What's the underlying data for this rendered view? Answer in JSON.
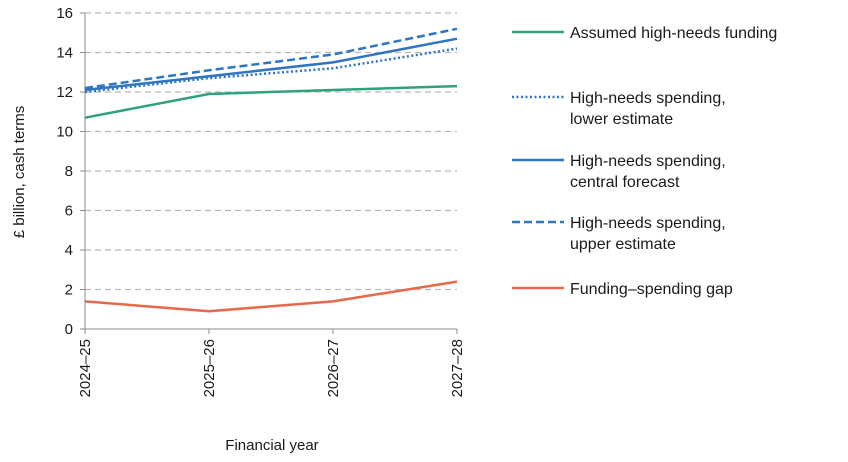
{
  "chart_data": {
    "type": "line",
    "xlabel": "Financial year",
    "ylabel": "£ billion, cash terms",
    "ylim": [
      0,
      16
    ],
    "yticks": [
      0,
      2,
      4,
      6,
      8,
      10,
      12,
      14,
      16
    ],
    "grid": "horizontal dashed",
    "legend_position": "right",
    "categories": [
      "2024–25",
      "2025–26",
      "2026–27",
      "2027–28"
    ],
    "series": [
      {
        "name": "Assumed high-needs funding",
        "values": [
          10.7,
          11.9,
          12.1,
          12.3
        ],
        "color": "#2ea37a",
        "style": "solid",
        "legend_lines": [
          "Assumed high-needs funding"
        ]
      },
      {
        "name": "High-needs spending, lower estimate",
        "values": [
          12.0,
          12.7,
          13.2,
          14.2
        ],
        "color": "#2e75c6",
        "style": "dotted",
        "legend_lines": [
          "High-needs spending,",
          "lower estimate"
        ]
      },
      {
        "name": "High-needs spending, central forecast",
        "values": [
          12.1,
          12.8,
          13.5,
          14.7
        ],
        "color": "#2e75c6",
        "style": "solid",
        "legend_lines": [
          "High-needs spending,",
          "central forecast"
        ]
      },
      {
        "name": "High-needs spending, upper estimate",
        "values": [
          12.2,
          13.1,
          13.9,
          15.2
        ],
        "color": "#2e75c6",
        "style": "dashed",
        "legend_lines": [
          "High-needs spending,",
          "upper estimate"
        ]
      },
      {
        "name": "Funding–spending gap",
        "values": [
          1.4,
          0.9,
          1.4,
          2.4
        ],
        "color": "#e8684a",
        "style": "solid",
        "legend_lines": [
          "Funding–spending gap"
        ]
      }
    ]
  }
}
